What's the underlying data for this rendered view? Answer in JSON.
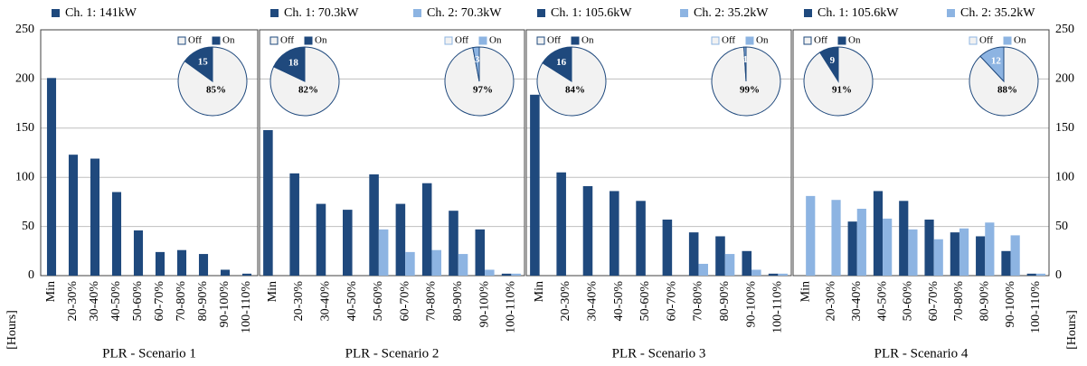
{
  "chart_data": [
    {
      "type": "bar",
      "xlabel": "PLR - Scenario 1",
      "yaxis": "left",
      "ylabel": "[Hours]",
      "categories": [
        "Min",
        "20-30%",
        "30-40%",
        "40-50%",
        "50-60%",
        "60-70%",
        "70-80%",
        "80-90%",
        "90-100%",
        "100-110%"
      ],
      "series": [
        {
          "name": "Ch. 1: 141kW",
          "color": "#1f497d",
          "values": [
            201,
            123,
            119,
            85,
            46,
            24,
            26,
            22,
            6,
            2
          ]
        }
      ],
      "ylim": [
        0,
        250
      ],
      "yticks": [
        0,
        50,
        100,
        150,
        200,
        250
      ],
      "grid": true,
      "insets": [
        {
          "type": "pie",
          "side": "right",
          "categories": [
            "Off",
            "On"
          ],
          "values": [
            85,
            15
          ],
          "value_labels": [
            "85%",
            "15"
          ],
          "colors": [
            "#f2f2f2",
            "#1f497d"
          ]
        }
      ]
    },
    {
      "type": "bar",
      "xlabel": "PLR - Scenario 2",
      "categories": [
        "Min",
        "20-30%",
        "30-40%",
        "40-50%",
        "50-60%",
        "60-70%",
        "70-80%",
        "80-90%",
        "90-100%",
        "100-110%"
      ],
      "series": [
        {
          "name": "Ch. 1: 70.3kW",
          "color": "#1f497d",
          "values": [
            148,
            104,
            73,
            67,
            103,
            73,
            94,
            66,
            47,
            2
          ]
        },
        {
          "name": "Ch. 2: 70.3kW",
          "color": "#8db4e2",
          "values": [
            0,
            0,
            0,
            0,
            47,
            24,
            26,
            22,
            6,
            2
          ]
        }
      ],
      "ylim": [
        0,
        250
      ],
      "yticks": [
        0,
        50,
        100,
        150,
        200,
        250
      ],
      "grid": true,
      "insets": [
        {
          "type": "pie",
          "side": "left",
          "categories": [
            "Off",
            "On"
          ],
          "values": [
            82,
            18
          ],
          "value_labels": [
            "82%",
            "18"
          ],
          "colors": [
            "#f2f2f2",
            "#1f497d"
          ]
        },
        {
          "type": "pie",
          "side": "right",
          "categories": [
            "Off",
            "On"
          ],
          "values": [
            97,
            3
          ],
          "value_labels": [
            "97%",
            "3"
          ],
          "colors": [
            "#f2f2f2",
            "#8db4e2"
          ]
        }
      ]
    },
    {
      "type": "bar",
      "xlabel": "PLR - Scenario 3",
      "categories": [
        "Min",
        "20-30%",
        "30-40%",
        "40-50%",
        "50-60%",
        "60-70%",
        "70-80%",
        "80-90%",
        "90-100%",
        "100-110%"
      ],
      "series": [
        {
          "name": "Ch. 1: 105.6kW",
          "color": "#1f497d",
          "values": [
            184,
            105,
            91,
            86,
            76,
            57,
            44,
            40,
            25,
            2
          ]
        },
        {
          "name": "Ch. 2: 35.2kW",
          "color": "#8db4e2",
          "values": [
            0,
            0,
            0,
            0,
            0,
            0,
            12,
            22,
            6,
            2
          ]
        }
      ],
      "ylim": [
        0,
        250
      ],
      "yticks": [
        0,
        50,
        100,
        150,
        200,
        250
      ],
      "grid": true,
      "insets": [
        {
          "type": "pie",
          "side": "left",
          "categories": [
            "Off",
            "On"
          ],
          "values": [
            84,
            16
          ],
          "value_labels": [
            "84%",
            "16"
          ],
          "colors": [
            "#f2f2f2",
            "#1f497d"
          ]
        },
        {
          "type": "pie",
          "side": "right",
          "categories": [
            "Off",
            "On"
          ],
          "values": [
            99,
            1
          ],
          "value_labels": [
            "99%",
            "1"
          ],
          "colors": [
            "#f2f2f2",
            "#8db4e2"
          ]
        }
      ]
    },
    {
      "type": "bar",
      "xlabel": "PLR - Scenario 4",
      "yaxis": "right",
      "ylabel": "[Hours]",
      "categories": [
        "Min",
        "20-30%",
        "30-40%",
        "40-50%",
        "50-60%",
        "60-70%",
        "70-80%",
        "80-90%",
        "90-100%",
        "100-110%"
      ],
      "series": [
        {
          "name": "Ch. 1: 105.6kW",
          "color": "#1f497d",
          "values": [
            0,
            0,
            55,
            86,
            76,
            57,
            44,
            40,
            25,
            2
          ]
        },
        {
          "name": "Ch. 2: 35.2kW",
          "color": "#8db4e2",
          "values": [
            81,
            77,
            68,
            58,
            47,
            37,
            48,
            54,
            41,
            2
          ]
        }
      ],
      "ylim": [
        0,
        250
      ],
      "yticks": [
        0,
        50,
        100,
        150,
        200,
        250
      ],
      "grid": true,
      "insets": [
        {
          "type": "pie",
          "side": "left",
          "categories": [
            "Off",
            "On"
          ],
          "values": [
            91,
            9
          ],
          "value_labels": [
            "91%",
            "9"
          ],
          "colors": [
            "#f2f2f2",
            "#1f497d"
          ]
        },
        {
          "type": "pie",
          "side": "right",
          "categories": [
            "Off",
            "On"
          ],
          "values": [
            88,
            12
          ],
          "value_labels": [
            "88%",
            "12"
          ],
          "colors": [
            "#f2f2f2",
            "#8db4e2"
          ]
        }
      ]
    }
  ]
}
